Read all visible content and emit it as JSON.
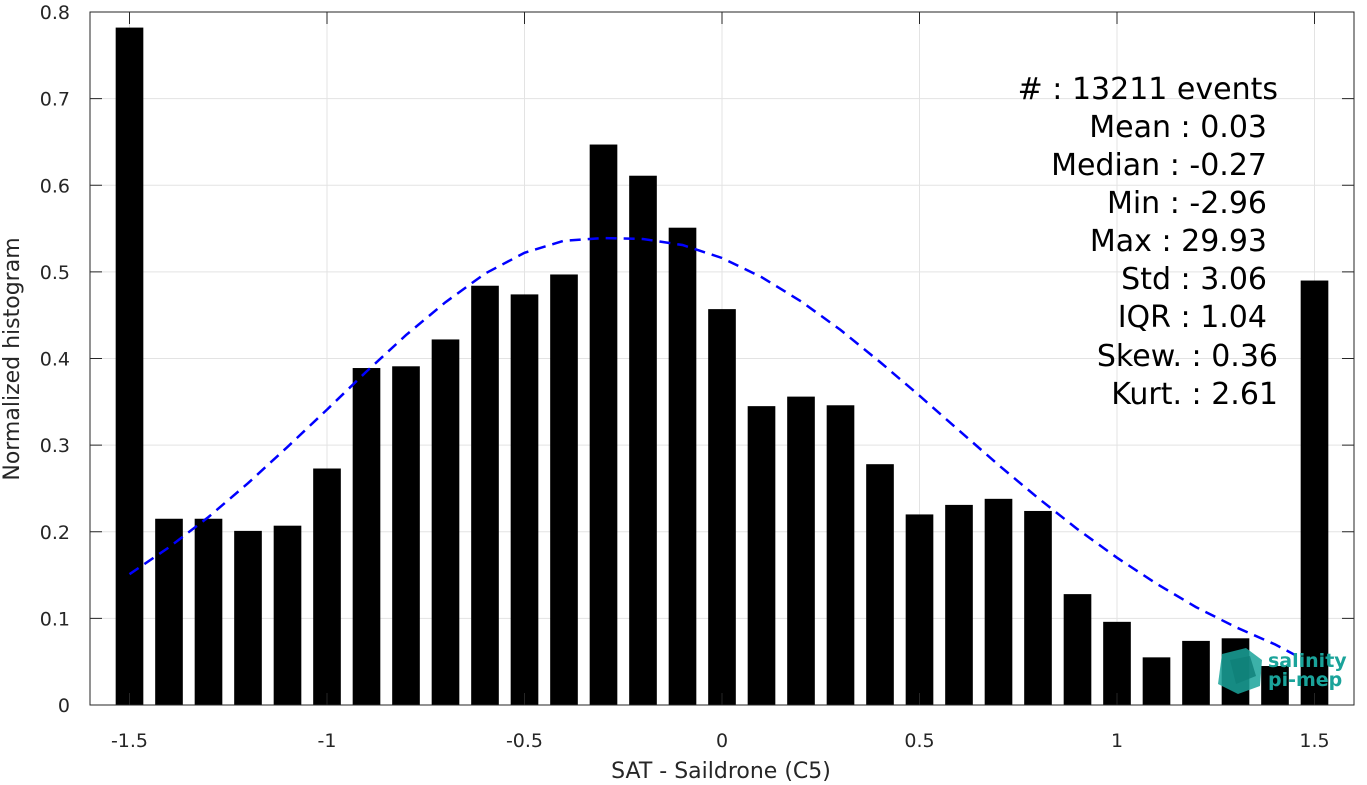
{
  "chart_data": {
    "type": "bar",
    "xlabel": "SAT - Saildrone (C5)",
    "ylabel": "Normalized histogram",
    "xlim": [
      -1.6,
      1.6
    ],
    "ylim": [
      0,
      0.8
    ],
    "grid": true,
    "x_ticks": [
      -1.5,
      -1,
      -0.5,
      0,
      0.5,
      1,
      1.5
    ],
    "x_tick_labels": [
      "-1.5",
      "-1",
      "-0.5",
      "0",
      "0.5",
      "1",
      "1.5"
    ],
    "y_ticks": [
      0,
      0.1,
      0.2,
      0.3,
      0.4,
      0.5,
      0.6,
      0.7,
      0.8
    ],
    "y_tick_labels": [
      "0",
      "0.1",
      "0.2",
      "0.3",
      "0.4",
      "0.5",
      "0.6",
      "0.7",
      "0.8"
    ],
    "bar_width": 0.07,
    "bars": {
      "x": [
        -1.5,
        -1.4,
        -1.3,
        -1.2,
        -1.1,
        -1.0,
        -0.9,
        -0.8,
        -0.7,
        -0.6,
        -0.5,
        -0.4,
        -0.3,
        -0.2,
        -0.1,
        0.0,
        0.1,
        0.2,
        0.3,
        0.4,
        0.5,
        0.6,
        0.7,
        0.8,
        0.9,
        1.0,
        1.1,
        1.2,
        1.3,
        1.4,
        1.5
      ],
      "values": [
        0.782,
        0.215,
        0.215,
        0.201,
        0.207,
        0.273,
        0.389,
        0.391,
        0.422,
        0.484,
        0.474,
        0.497,
        0.647,
        0.611,
        0.551,
        0.457,
        0.345,
        0.356,
        0.346,
        0.278,
        0.22,
        0.231,
        0.238,
        0.224,
        0.128,
        0.096,
        0.055,
        0.074,
        0.077,
        0.045,
        0.49
      ],
      "color": "#000000"
    },
    "fit_curve": {
      "style": "dashed",
      "color": "#0000ff",
      "x": [
        -1.5,
        -1.4,
        -1.3,
        -1.2,
        -1.1,
        -1.0,
        -0.9,
        -0.8,
        -0.7,
        -0.6,
        -0.5,
        -0.4,
        -0.3,
        -0.2,
        -0.1,
        0.0,
        0.1,
        0.2,
        0.3,
        0.4,
        0.5,
        0.6,
        0.7,
        0.8,
        0.9,
        1.0,
        1.1,
        1.2,
        1.3,
        1.4,
        1.45
      ],
      "values": [
        0.151,
        0.182,
        0.217,
        0.256,
        0.298,
        0.341,
        0.385,
        0.427,
        0.465,
        0.498,
        0.522,
        0.536,
        0.539,
        0.538,
        0.531,
        0.516,
        0.494,
        0.466,
        0.433,
        0.396,
        0.357,
        0.317,
        0.277,
        0.239,
        0.203,
        0.17,
        0.14,
        0.113,
        0.09,
        0.07,
        0.058
      ]
    },
    "stats": [
      "#  : 13211 events",
      "Mean : 0.03",
      "Median : -0.27",
      "Min : -2.96",
      "Max : 29.93",
      "Std : 3.06",
      "IQR : 1.04",
      "Skew. : 0.36",
      "Kurt. : 2.61"
    ]
  },
  "logo": {
    "line1": "salinity",
    "line2": "pi-mep",
    "color": "#1aa39a"
  }
}
